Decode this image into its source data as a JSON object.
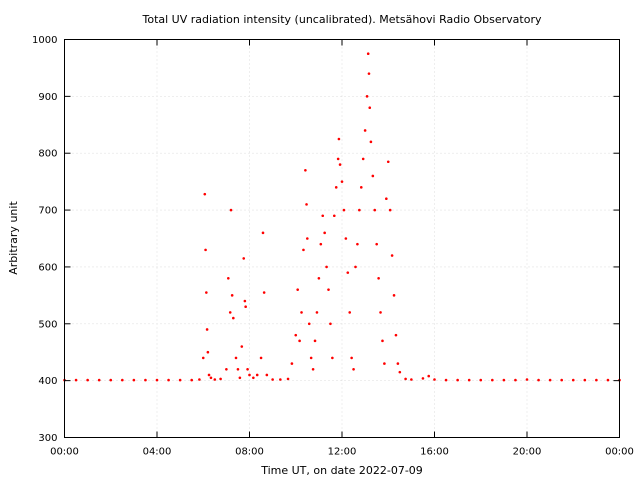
{
  "chart_data": {
    "type": "scatter",
    "title": "Total UV radiation intensity (uncalibrated). Metsähovi Radio Observatory",
    "xlabel": "Time UT, on date 2022-07-09",
    "ylabel": "Arbitrary unit",
    "xlim": [
      "00:00",
      "24:00"
    ],
    "ylim": [
      300,
      1000
    ],
    "x_ticks": [
      "00:00",
      "04:00",
      "08:00",
      "12:00",
      "16:00",
      "20:00",
      "00:00"
    ],
    "y_ticks": [
      300,
      400,
      500,
      600,
      700,
      800,
      900,
      1000
    ],
    "grid": true,
    "color": "#ff0000",
    "series": [
      {
        "name": "",
        "points": [
          [
            "00:00",
            401
          ],
          [
            "00:30",
            401
          ],
          [
            "01:00",
            401
          ],
          [
            "01:30",
            401
          ],
          [
            "02:00",
            401
          ],
          [
            "02:30",
            401
          ],
          [
            "03:00",
            401
          ],
          [
            "03:30",
            401
          ],
          [
            "04:00",
            401
          ],
          [
            "04:30",
            401
          ],
          [
            "05:00",
            401
          ],
          [
            "05:30",
            401
          ],
          [
            "05:50",
            402
          ],
          [
            "06:00",
            440
          ],
          [
            "06:04",
            728
          ],
          [
            "06:06",
            630
          ],
          [
            "06:08",
            555
          ],
          [
            "06:10",
            490
          ],
          [
            "06:12",
            450
          ],
          [
            "06:15",
            410
          ],
          [
            "06:20",
            405
          ],
          [
            "06:30",
            402
          ],
          [
            "06:45",
            403
          ],
          [
            "07:00",
            420
          ],
          [
            "07:05",
            580
          ],
          [
            "07:10",
            520
          ],
          [
            "07:12",
            700
          ],
          [
            "07:15",
            550
          ],
          [
            "07:18",
            510
          ],
          [
            "07:25",
            440
          ],
          [
            "07:30",
            420
          ],
          [
            "07:35",
            405
          ],
          [
            "07:40",
            460
          ],
          [
            "07:45",
            615
          ],
          [
            "07:48",
            540
          ],
          [
            "07:50",
            530
          ],
          [
            "07:55",
            420
          ],
          [
            "08:00",
            410
          ],
          [
            "08:10",
            405
          ],
          [
            "08:20",
            410
          ],
          [
            "08:30",
            440
          ],
          [
            "08:35",
            660
          ],
          [
            "08:38",
            555
          ],
          [
            "08:45",
            410
          ],
          [
            "09:00",
            402
          ],
          [
            "09:20",
            402
          ],
          [
            "09:40",
            403
          ],
          [
            "09:50",
            430
          ],
          [
            "10:00",
            480
          ],
          [
            "10:05",
            560
          ],
          [
            "10:10",
            470
          ],
          [
            "10:15",
            520
          ],
          [
            "10:20",
            630
          ],
          [
            "10:25",
            770
          ],
          [
            "10:28",
            710
          ],
          [
            "10:30",
            650
          ],
          [
            "10:35",
            500
          ],
          [
            "10:40",
            440
          ],
          [
            "10:45",
            420
          ],
          [
            "10:50",
            470
          ],
          [
            "10:55",
            520
          ],
          [
            "11:00",
            580
          ],
          [
            "11:05",
            640
          ],
          [
            "11:10",
            690
          ],
          [
            "11:15",
            660
          ],
          [
            "11:20",
            600
          ],
          [
            "11:25",
            560
          ],
          [
            "11:30",
            500
          ],
          [
            "11:35",
            440
          ],
          [
            "11:40",
            690
          ],
          [
            "11:45",
            740
          ],
          [
            "11:50",
            790
          ],
          [
            "11:52",
            825
          ],
          [
            "11:55",
            780
          ],
          [
            "12:00",
            750
          ],
          [
            "12:05",
            700
          ],
          [
            "12:10",
            650
          ],
          [
            "12:15",
            590
          ],
          [
            "12:20",
            520
          ],
          [
            "12:25",
            440
          ],
          [
            "12:30",
            420
          ],
          [
            "12:35",
            600
          ],
          [
            "12:40",
            640
          ],
          [
            "12:45",
            700
          ],
          [
            "12:50",
            740
          ],
          [
            "12:55",
            790
          ],
          [
            "13:00",
            840
          ],
          [
            "13:05",
            900
          ],
          [
            "13:08",
            975
          ],
          [
            "13:10",
            940
          ],
          [
            "13:12",
            880
          ],
          [
            "13:15",
            820
          ],
          [
            "13:20",
            760
          ],
          [
            "13:25",
            700
          ],
          [
            "13:30",
            640
          ],
          [
            "13:35",
            580
          ],
          [
            "13:40",
            520
          ],
          [
            "13:45",
            470
          ],
          [
            "13:50",
            430
          ],
          [
            "13:55",
            720
          ],
          [
            "14:00",
            785
          ],
          [
            "14:05",
            700
          ],
          [
            "14:10",
            620
          ],
          [
            "14:15",
            550
          ],
          [
            "14:20",
            480
          ],
          [
            "14:25",
            430
          ],
          [
            "14:30",
            415
          ],
          [
            "14:45",
            403
          ],
          [
            "15:00",
            402
          ],
          [
            "15:30",
            404
          ],
          [
            "15:45",
            408
          ],
          [
            "16:00",
            402
          ],
          [
            "16:30",
            401
          ],
          [
            "17:00",
            401
          ],
          [
            "17:30",
            401
          ],
          [
            "18:00",
            401
          ],
          [
            "18:30",
            401
          ],
          [
            "19:00",
            401
          ],
          [
            "19:30",
            401
          ],
          [
            "20:00",
            402
          ],
          [
            "20:30",
            401
          ],
          [
            "21:00",
            401
          ],
          [
            "21:30",
            401
          ],
          [
            "22:00",
            401
          ],
          [
            "22:30",
            401
          ],
          [
            "23:00",
            401
          ],
          [
            "23:30",
            401
          ],
          [
            "24:00",
            401
          ]
        ]
      }
    ]
  }
}
